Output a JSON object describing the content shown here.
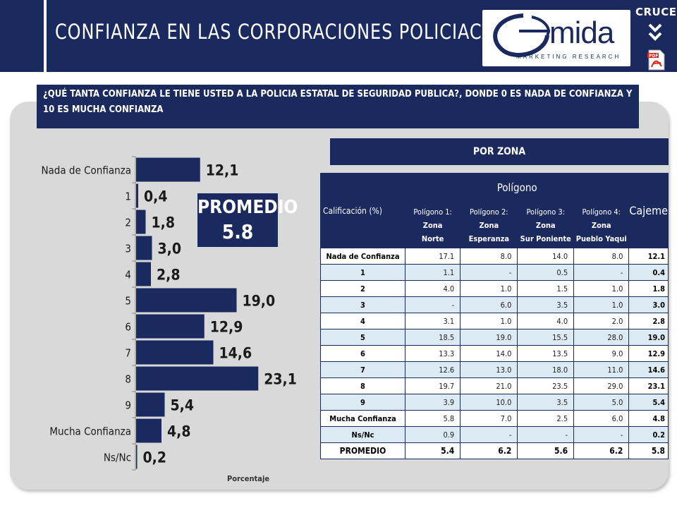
{
  "header": {
    "title": "CONFIANZA EN LAS CORPORACIONES POLICIACAS",
    "logo_text": "mida",
    "logo_sub": "MARKETING RESEARCH",
    "cruces_label": "CRUCES",
    "pdf_label": "PDF"
  },
  "question": "¿QUÉ TANTA CONFIANZA LE TIENE USTED A LA POLICIA ESTATAL DE SEGURIDAD PUBLICA?, DONDE 0 ES NADA DE CONFIANZA Y 10 ES MUCHA CONFIANZA",
  "promedio": {
    "label": "PROMEDIO",
    "value": "5.8"
  },
  "chart_data": {
    "type": "bar",
    "orientation": "horizontal",
    "categories": [
      "Nada de Confianza",
      "1",
      "2",
      "3",
      "4",
      "5",
      "6",
      "7",
      "8",
      "9",
      "Mucha Confianza",
      "Ns/Nc"
    ],
    "values": [
      12.1,
      0.4,
      1.8,
      3.0,
      2.8,
      19.0,
      12.9,
      14.6,
      23.1,
      5.4,
      4.8,
      0.2
    ],
    "value_labels": [
      "12,1",
      "0,4",
      "1,8",
      "3,0",
      "2,8",
      "19,0",
      "12,9",
      "14,6",
      "23,1",
      "5,4",
      "4,8",
      "0,2"
    ],
    "xlabel": "Porcentaje",
    "xlim": [
      0,
      25
    ],
    "bar_color": "#1b2a5e",
    "grid": false
  },
  "table": {
    "zone_header": "POR ZONA",
    "calif_header": "Calificación (%)",
    "group_header": "Polígono",
    "total_header": "Cajeme",
    "columns": [
      {
        "l1a": "Polígono 1: ",
        "l1b": "Zona",
        "l2": "Norte"
      },
      {
        "l1a": "Polígono 2: ",
        "l1b": "Zona",
        "l2": "Esperanza"
      },
      {
        "l1a": "Polígono 3: ",
        "l1b": "Zona",
        "l2": "Sur Poniente"
      },
      {
        "l1a": "Polígono 4: ",
        "l1b": "Zona",
        "l2": "Pueblo Yaqui"
      }
    ],
    "rows": [
      {
        "label": "Nada de Confianza",
        "values": [
          "17.1",
          "8.0",
          "14.0",
          "8.0"
        ],
        "total": "12.1"
      },
      {
        "label": "1",
        "values": [
          "1.1",
          "-",
          "0.5",
          "-"
        ],
        "total": "0.4"
      },
      {
        "label": "2",
        "values": [
          "4.0",
          "1.0",
          "1.5",
          "1.0"
        ],
        "total": "1.8"
      },
      {
        "label": "3",
        "values": [
          "-",
          "6.0",
          "3.5",
          "1.0"
        ],
        "total": "3.0"
      },
      {
        "label": "4",
        "values": [
          "3.1",
          "1.0",
          "4.0",
          "2.0"
        ],
        "total": "2.8"
      },
      {
        "label": "5",
        "values": [
          "18.5",
          "19.0",
          "15.5",
          "28.0"
        ],
        "total": "19.0"
      },
      {
        "label": "6",
        "values": [
          "13.3",
          "14.0",
          "13.5",
          "9.0"
        ],
        "total": "12.9"
      },
      {
        "label": "7",
        "values": [
          "12.6",
          "13.0",
          "18.0",
          "11.0"
        ],
        "total": "14.6"
      },
      {
        "label": "8",
        "values": [
          "19.7",
          "21.0",
          "23.5",
          "29.0"
        ],
        "total": "23.1"
      },
      {
        "label": "9",
        "values": [
          "3.9",
          "10.0",
          "3.5",
          "5.0"
        ],
        "total": "5.4"
      },
      {
        "label": "Mucha Confianza",
        "values": [
          "5.8",
          "7.0",
          "2.5",
          "6.0"
        ],
        "total": "4.8"
      },
      {
        "label": "Ns/Nc",
        "values": [
          "0.9",
          "-",
          "-",
          "-"
        ],
        "total": "0.2"
      }
    ],
    "promedio_row": {
      "label": "PROMEDIO",
      "values": [
        "5.4",
        "6.2",
        "5.6",
        "6.2"
      ],
      "total": "5.8"
    }
  },
  "colors": {
    "navy": "#1b2a5e",
    "panel": "#d9d9d9",
    "row_alt": "#dbeaf3"
  }
}
